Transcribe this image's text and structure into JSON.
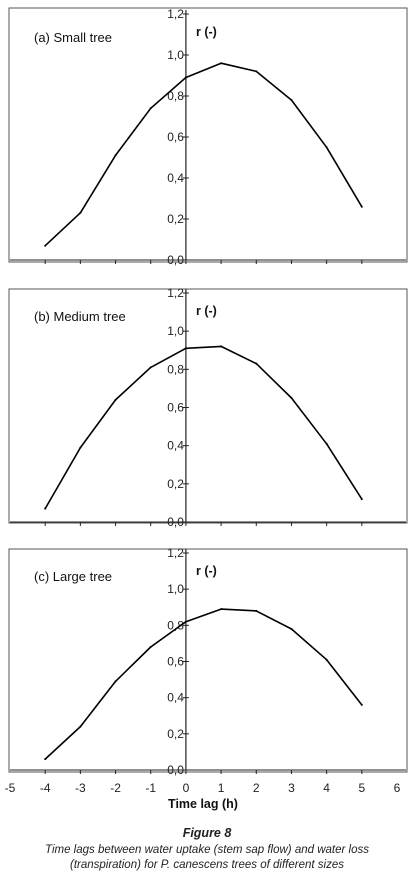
{
  "chart_data": [
    {
      "type": "line",
      "title": "(a) Small tree",
      "ylabel": "r (-)",
      "ylim": [
        0,
        1.2
      ],
      "yticks": [
        "0,0",
        "0,2",
        "0,4",
        "0,6",
        "0,8",
        "1,0",
        "1,2"
      ],
      "x": [
        -4,
        -3,
        -2,
        -1,
        0,
        1,
        2,
        3,
        4,
        5
      ],
      "values": [
        0.07,
        0.23,
        0.51,
        0.74,
        0.89,
        0.96,
        0.92,
        0.78,
        0.55,
        0.26
      ],
      "grid": false
    },
    {
      "type": "line",
      "title": "(b) Medium tree",
      "ylabel": "r (-)",
      "ylim": [
        0,
        1.2
      ],
      "yticks": [
        "0,0",
        "0,2",
        "0,4",
        "0,6",
        "0,8",
        "1,0",
        "1,2"
      ],
      "x": [
        -4,
        -3,
        -2,
        -1,
        0,
        1,
        2,
        3,
        4,
        5
      ],
      "values": [
        0.07,
        0.39,
        0.64,
        0.81,
        0.91,
        0.92,
        0.83,
        0.65,
        0.41,
        0.12
      ],
      "grid": false
    },
    {
      "type": "line",
      "title": "(c) Large tree",
      "ylabel": "r (-)",
      "ylim": [
        0,
        1.2
      ],
      "yticks": [
        "0,0",
        "0,2",
        "0,4",
        "0,6",
        "0,8",
        "1,0",
        "1,2"
      ],
      "x": [
        -4,
        -3,
        -2,
        -1,
        0,
        1,
        2,
        3,
        4,
        5
      ],
      "values": [
        0.06,
        0.24,
        0.49,
        0.68,
        0.82,
        0.89,
        0.88,
        0.78,
        0.61,
        0.36
      ],
      "xlabel": "Time lag (h)",
      "xlim": [
        -5,
        6
      ],
      "xticks": [
        "-5",
        "-4",
        "-3",
        "-2",
        "-1",
        "0",
        "1",
        "2",
        "3",
        "4",
        "5",
        "6"
      ],
      "grid": false
    }
  ],
  "caption": {
    "figure_label": "Figure 8",
    "line1": "Time lags between water uptake (stem sap flow) and water loss",
    "line2": "(transpiration) for P. canescens trees of different sizes"
  }
}
